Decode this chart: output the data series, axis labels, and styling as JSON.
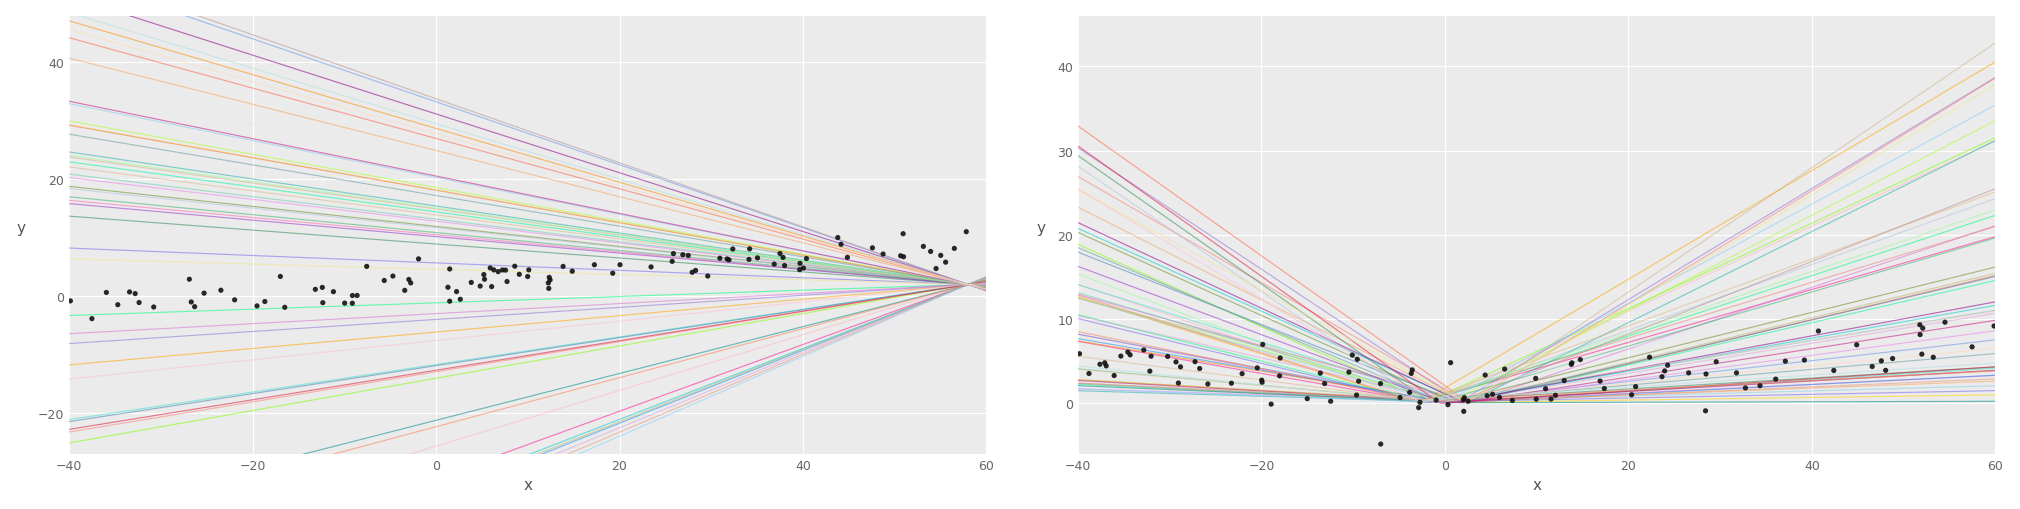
{
  "x_range": [
    -40,
    60
  ],
  "left_ylim": [
    -27,
    48
  ],
  "right_ylim": [
    -6,
    46
  ],
  "left_yticks": [
    -20,
    0,
    20,
    40
  ],
  "right_yticks": [
    0,
    10,
    20,
    30,
    40
  ],
  "xticks": [
    -40,
    -20,
    0,
    20,
    40,
    60
  ],
  "xlabel": "x",
  "ylabel": "y",
  "bg_color": "#EBEBEB",
  "grid_color": "#FFFFFF",
  "n_lines": 50,
  "line_alpha": 0.55,
  "line_width": 0.85,
  "dot_color": "#111111",
  "dot_size": 14,
  "dot_alpha": 0.9,
  "colors": [
    "#FF69B4",
    "#FF1493",
    "#FFB6C1",
    "#FF6347",
    "#FF8C00",
    "#FFA500",
    "#FFD700",
    "#ADFF2F",
    "#7FFF00",
    "#00FF7F",
    "#00FA9A",
    "#40E0D0",
    "#00CED1",
    "#87CEEB",
    "#1E90FF",
    "#6495ED",
    "#9370DB",
    "#DA70D6",
    "#EE82EE",
    "#DDA0DD",
    "#F08080",
    "#FA8072",
    "#E9967A",
    "#F4A460",
    "#D2B48C",
    "#BDB76B",
    "#6B8E23",
    "#2E8B57",
    "#008B8B",
    "#4682B4",
    "#5F9EA0",
    "#B0C4DE",
    "#20B2AA",
    "#3CB371",
    "#66CDAA",
    "#7B68EE",
    "#9932CC",
    "#8B008B",
    "#C71585",
    "#DC143C",
    "#FF7F50",
    "#98FB98",
    "#87CEFA",
    "#DEB887",
    "#BC8F8F",
    "#F0E68C",
    "#E6E6FA",
    "#FFC0CB",
    "#B0E0E6",
    "#FFDAB9"
  ]
}
